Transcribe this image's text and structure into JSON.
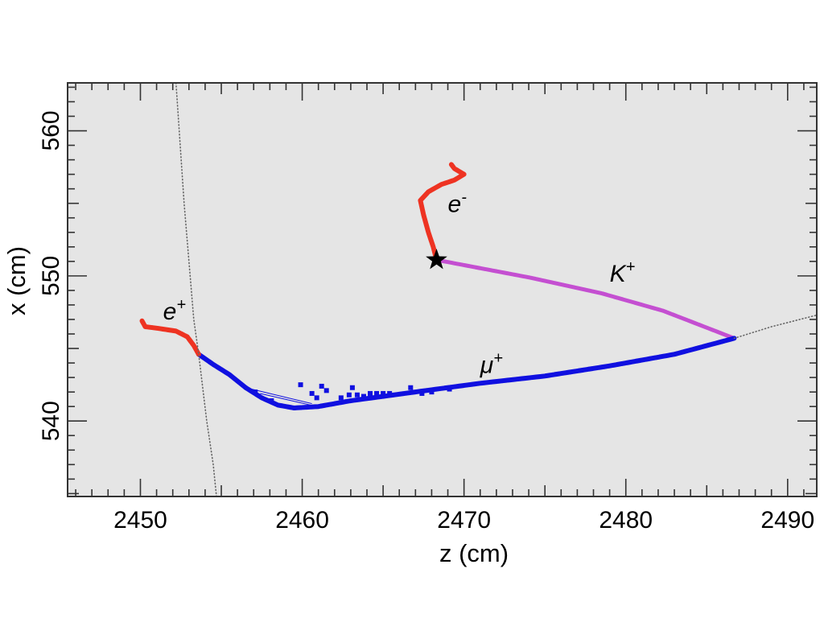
{
  "chart_data": {
    "type": "scatter",
    "title": "",
    "xlabel": "z (cm)",
    "ylabel": "x (cm)",
    "xlim": [
      2445.5,
      2491.8
    ],
    "ylim": [
      534.8,
      563.3
    ],
    "xticks": [
      2450,
      2460,
      2470,
      2480,
      2490
    ],
    "xtick_labels": [
      "2450",
      "2460",
      "2470",
      "2480",
      "2490"
    ],
    "yticks": [
      540,
      550,
      560
    ],
    "ytick_labels": [
      "540",
      "550",
      "560"
    ],
    "grid": false,
    "background": "#e5e5e5",
    "series": [
      {
        "name": "K+",
        "color": "#c44fd1",
        "mark": "segment",
        "points": [
          [
            2468.3,
            551.1
          ],
          [
            2474.0,
            549.9
          ],
          [
            2478.5,
            548.8
          ],
          [
            2482.3,
            547.6
          ],
          [
            2486.7,
            545.7
          ]
        ]
      },
      {
        "name": "μ+",
        "color": "#1010e0",
        "mark": "track",
        "points": [
          [
            2486.7,
            545.7
          ],
          [
            2483.0,
            544.6
          ],
          [
            2479.0,
            543.8
          ],
          [
            2475.0,
            543.1
          ],
          [
            2471.0,
            542.6
          ],
          [
            2467.0,
            542.0
          ],
          [
            2465.0,
            541.7
          ],
          [
            2463.0,
            541.4
          ],
          [
            2461.0,
            541.0
          ],
          [
            2459.5,
            540.9
          ],
          [
            2458.5,
            541.1
          ],
          [
            2457.5,
            541.6
          ],
          [
            2456.5,
            542.3
          ],
          [
            2455.5,
            543.2
          ],
          [
            2454.5,
            543.9
          ],
          [
            2453.6,
            544.6
          ]
        ]
      },
      {
        "name": "μ+ hits",
        "color": "#1010e0",
        "mark": "square",
        "points": [
          [
            2459.9,
            542.5
          ],
          [
            2460.6,
            541.9
          ],
          [
            2461.2,
            542.4
          ],
          [
            2461.5,
            542.1
          ],
          [
            2460.9,
            541.6
          ],
          [
            2462.4,
            541.6
          ],
          [
            2462.9,
            541.8
          ],
          [
            2463.4,
            541.8
          ],
          [
            2463.1,
            542.3
          ],
          [
            2463.8,
            541.7
          ],
          [
            2464.2,
            541.9
          ],
          [
            2464.6,
            541.9
          ],
          [
            2465.0,
            541.9
          ],
          [
            2465.4,
            541.9
          ],
          [
            2466.7,
            542.3
          ],
          [
            2467.4,
            541.9
          ],
          [
            2468.0,
            542.0
          ],
          [
            2469.1,
            542.2
          ],
          [
            2457.1,
            542.0
          ],
          [
            2458.1,
            541.4
          ]
        ]
      },
      {
        "name": "e-",
        "color": "#ee3322",
        "mark": "track",
        "points": [
          [
            2468.3,
            551.1
          ],
          [
            2468.1,
            552.0
          ],
          [
            2467.8,
            553.0
          ],
          [
            2467.5,
            554.2
          ],
          [
            2467.3,
            555.2
          ],
          [
            2467.8,
            555.8
          ],
          [
            2468.6,
            556.3
          ],
          [
            2469.4,
            556.6
          ],
          [
            2470.0,
            557.0
          ],
          [
            2469.4,
            557.4
          ],
          [
            2469.2,
            557.7
          ]
        ]
      },
      {
        "name": "e+",
        "color": "#ee3322",
        "mark": "track",
        "points": [
          [
            2453.6,
            544.6
          ],
          [
            2453.3,
            545.2
          ],
          [
            2452.9,
            545.8
          ],
          [
            2452.2,
            546.2
          ],
          [
            2451.0,
            546.4
          ],
          [
            2450.3,
            546.5
          ],
          [
            2450.1,
            546.9
          ]
        ]
      },
      {
        "name": "beam-line-left",
        "color": "#666666",
        "mark": "dotted",
        "points": [
          [
            2452.2,
            563.3
          ],
          [
            2452.7,
            555.0
          ],
          [
            2453.3,
            547.0
          ],
          [
            2453.6,
            544.6
          ],
          [
            2454.1,
            540.0
          ],
          [
            2454.5,
            537.0
          ],
          [
            2454.7,
            534.8
          ]
        ]
      },
      {
        "name": "beam-line-right",
        "color": "#666666",
        "mark": "dotted",
        "points": [
          [
            2486.7,
            545.7
          ],
          [
            2489.0,
            546.5
          ],
          [
            2491.8,
            547.3
          ]
        ]
      }
    ],
    "markers": [
      {
        "name": "decay-vertex",
        "type": "star",
        "color": "#000000",
        "x": 2468.3,
        "y": 551.1
      }
    ],
    "annotations": [
      {
        "text": "K",
        "sup": "+",
        "x": 2479.0,
        "y": 549.6
      },
      {
        "text": "μ",
        "sup": "+",
        "x": 2471.0,
        "y": 543.3
      },
      {
        "text": "e",
        "sup": "-",
        "x": 2469.0,
        "y": 554.4
      },
      {
        "text": "e",
        "sup": "+",
        "x": 2451.4,
        "y": 547.0
      }
    ]
  }
}
